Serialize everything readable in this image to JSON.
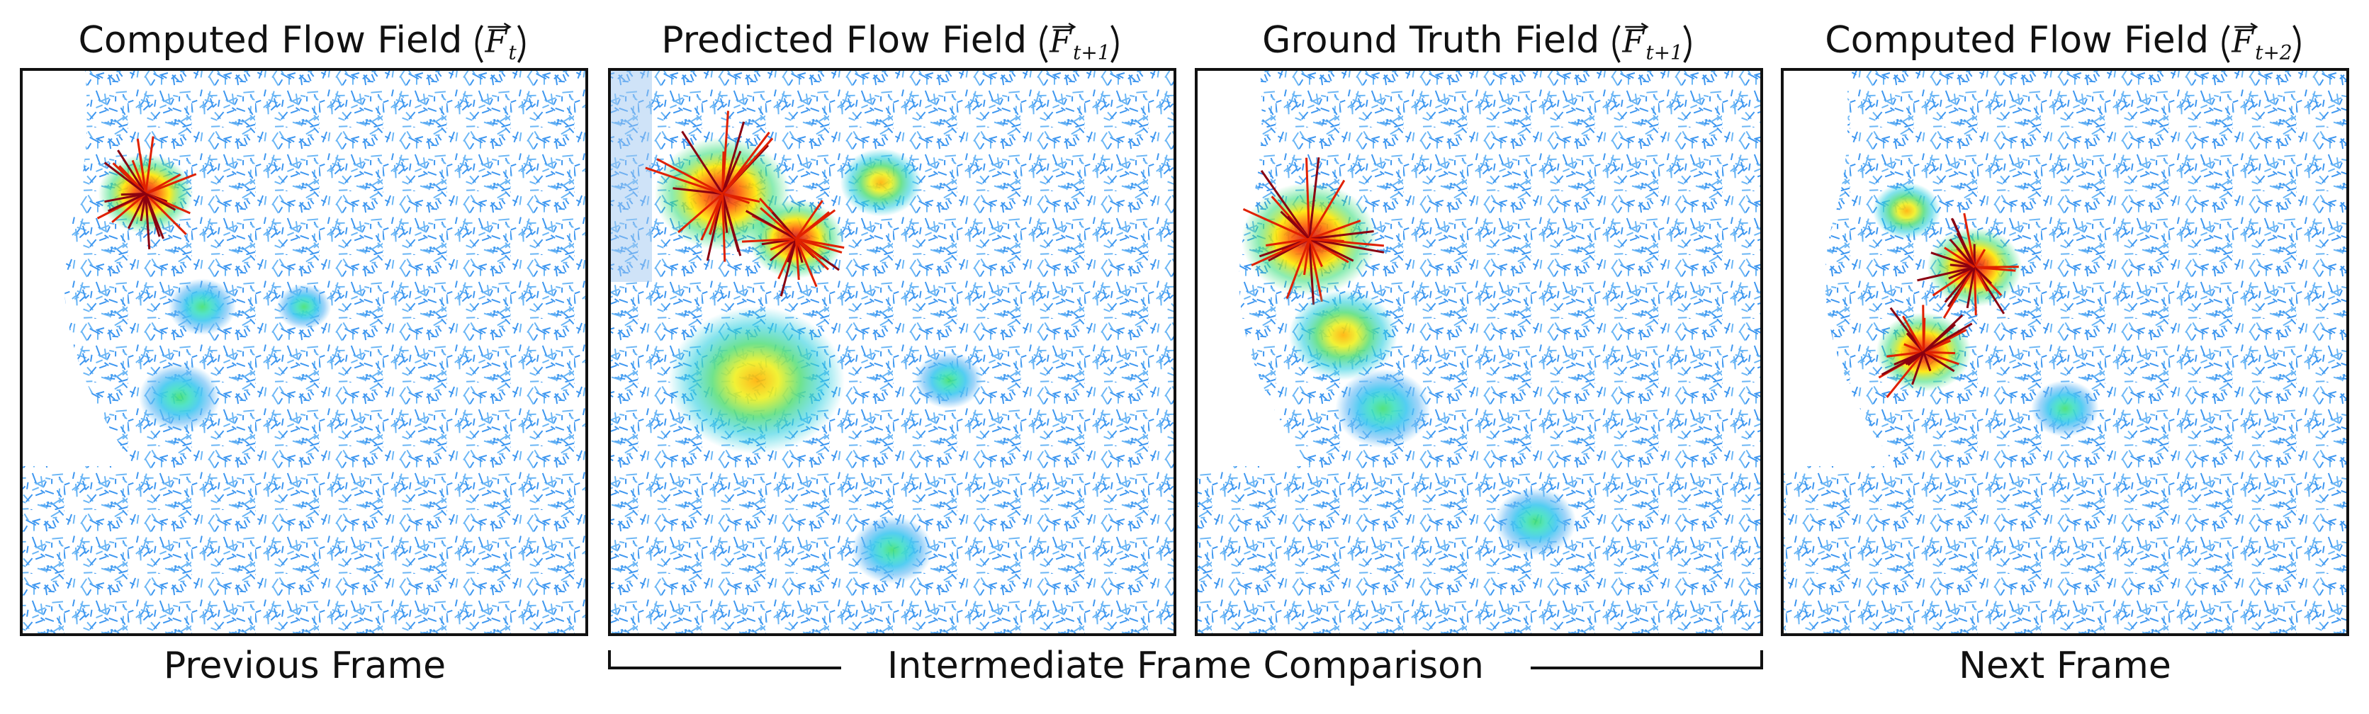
{
  "panels": [
    {
      "title": "Computed Flow Field",
      "symbol": "F",
      "subscript": "t"
    },
    {
      "title": "Predicted Flow Field",
      "symbol": "F",
      "subscript": "t+1"
    },
    {
      "title": "Ground Truth Field",
      "symbol": "F",
      "subscript": "t+1"
    },
    {
      "title": "Computed Flow Field",
      "symbol": "F",
      "subscript": "t+2"
    }
  ],
  "captions": {
    "previous": "Previous Frame",
    "intermediate": "Intermediate Frame Comparison",
    "next": "Next Frame"
  }
}
